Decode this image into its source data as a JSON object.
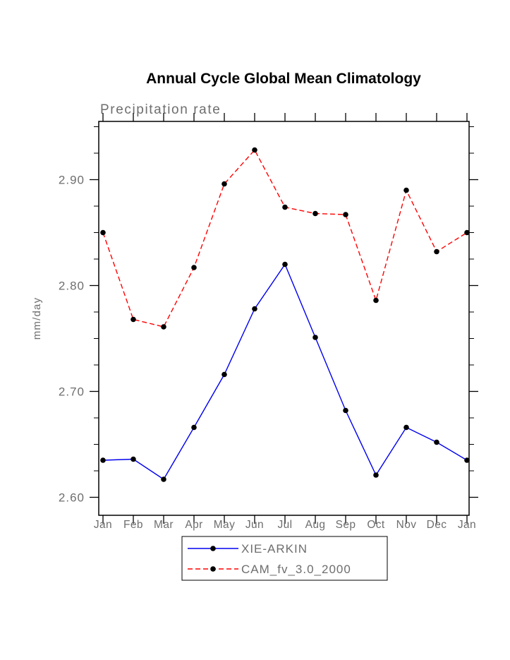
{
  "chart_data": {
    "type": "line",
    "title": "Annual Cycle Global Mean Climatology",
    "subtitle": "Precipitation rate",
    "ylabel": "mm/day",
    "xlabel": "",
    "categories": [
      "Jan",
      "Feb",
      "Mar",
      "Apr",
      "May",
      "Jun",
      "Jul",
      "Aug",
      "Sep",
      "Oct",
      "Nov",
      "Dec",
      "Jan"
    ],
    "ylim": [
      2.583,
      2.955
    ],
    "yticks": [
      2.6,
      2.7,
      2.8,
      2.9
    ],
    "ytick_labels": [
      "2.60",
      "2.70",
      "2.80",
      "2.90"
    ],
    "minor_tick_step": 0.025,
    "grid": false,
    "legend_position": "bottom",
    "frame_color": "#000000",
    "marker_color": "#000000",
    "series": [
      {
        "name": "XIE-ARKIN",
        "color": "#0000ee",
        "style": "solid",
        "values": [
          2.635,
          2.636,
          2.617,
          2.666,
          2.716,
          2.778,
          2.82,
          2.751,
          2.682,
          2.621,
          2.666,
          2.652,
          2.635
        ]
      },
      {
        "name": "CAM_fv_3.0_2000",
        "color": "#ff0000",
        "style": "dashed",
        "values": [
          2.85,
          2.768,
          2.761,
          2.817,
          2.896,
          2.928,
          2.874,
          2.868,
          2.867,
          2.786,
          2.89,
          2.832,
          2.85
        ]
      }
    ]
  }
}
